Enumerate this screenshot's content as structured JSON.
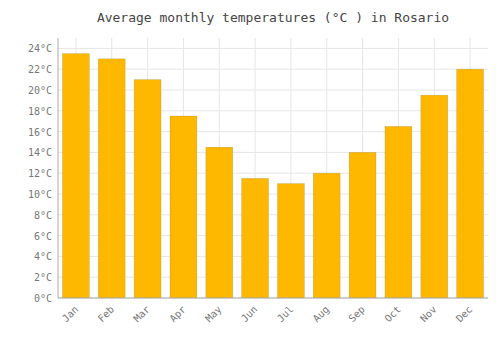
{
  "chart_data": {
    "type": "bar",
    "title": "Average monthly temperatures (°C ) in Rosario",
    "categories": [
      "Jan",
      "Feb",
      "Mar",
      "Apr",
      "May",
      "Jun",
      "Jul",
      "Aug",
      "Sep",
      "Oct",
      "Nov",
      "Dec"
    ],
    "values": [
      23.5,
      23.0,
      21.0,
      17.5,
      14.5,
      11.5,
      11.0,
      12.0,
      14.0,
      16.5,
      19.5,
      22.0
    ],
    "color": "#FFB800",
    "ylim": [
      0,
      25
    ],
    "yticks": [
      {
        "value": 0,
        "label": "0°C"
      },
      {
        "value": 2,
        "label": "2°C"
      },
      {
        "value": 4,
        "label": "4°C"
      },
      {
        "value": 6,
        "label": "6°C"
      },
      {
        "value": 8,
        "label": "8°C"
      },
      {
        "value": 10,
        "label": "10°C"
      },
      {
        "value": 12,
        "label": "12°C"
      },
      {
        "value": 14,
        "label": "14°C"
      },
      {
        "value": 16,
        "label": "16°C"
      },
      {
        "value": 18,
        "label": "18°C"
      },
      {
        "value": 20,
        "label": "20°C"
      },
      {
        "value": 22,
        "label": "22°C"
      },
      {
        "value": 24,
        "label": "24°C"
      }
    ],
    "grid": true
  }
}
